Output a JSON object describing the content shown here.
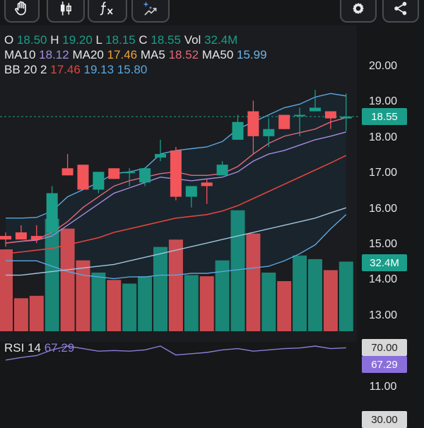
{
  "toolbar": {
    "left_tools": [
      {
        "icon": "hand-gesture-icon"
      },
      {
        "icon": "candlestick-icon"
      },
      {
        "icon": "indicator-function-icon"
      },
      {
        "icon": "drawing-tools-icon"
      }
    ],
    "right_tools": [
      {
        "icon": "gear-icon"
      },
      {
        "icon": "share-icon"
      }
    ]
  },
  "ohlc": {
    "o_label": "O",
    "o": "18.50",
    "h_label": "H",
    "h": "19.20",
    "l_label": "L",
    "l": "18.15",
    "c_label": "C",
    "c": "18.55",
    "vol_label": "Vol",
    "vol": "32.4M"
  },
  "ma_line": {
    "ma10_label": "MA10",
    "ma10": "18.12",
    "ma20_label": "MA20",
    "ma20": "17.46",
    "ma5_label": "MA5",
    "ma5": "18.52",
    "ma50_label": "MA50",
    "ma50": "15.99"
  },
  "bb_line": {
    "label": "BB 20 2",
    "mid": "17.46",
    "upper": "19.13",
    "lower": "15.80"
  },
  "rsi": {
    "label": "RSI 14",
    "value": "67.29"
  },
  "colors": {
    "up": "#1a9e8a",
    "down": "#f2555a",
    "ma10": "#a58ce0",
    "ma20": "#f0a23a",
    "ma5": "#e8667a",
    "ma50": "#6fb4e8",
    "bb_mid": "#e0453f",
    "bb_upper": "#5aa7e0",
    "bb_lower": "#5aa7e0",
    "rsi": "#8f7cd8",
    "background": "#161719"
  },
  "chart_data": {
    "type": "candlestick",
    "y_ticks": [
      "20.00",
      "19.00",
      "18.00",
      "17.00",
      "16.00",
      "15.00",
      "14.00",
      "13.00",
      "11.00"
    ],
    "price_label": "18.55",
    "volume_label": "32.4M",
    "rsi_ticks": [
      "70.00",
      "30.00"
    ],
    "rsi_value_label": "67.29",
    "candles": [
      {
        "o": 15.2,
        "h": 15.3,
        "l": 14.9,
        "c": 15.1
      },
      {
        "o": 15.3,
        "h": 15.5,
        "l": 15.1,
        "c": 15.1
      },
      {
        "o": 15.2,
        "h": 15.5,
        "l": 15.0,
        "c": 15.1
      },
      {
        "o": 15.3,
        "h": 16.6,
        "l": 15.2,
        "c": 16.4
      },
      {
        "o": 17.1,
        "h": 17.5,
        "l": 16.9,
        "c": 16.9
      },
      {
        "o": 17.2,
        "h": 17.2,
        "l": 16.5,
        "c": 16.5
      },
      {
        "o": 16.5,
        "h": 17.0,
        "l": 16.4,
        "c": 17.0
      },
      {
        "o": 17.1,
        "h": 17.1,
        "l": 16.8,
        "c": 16.8
      },
      {
        "o": 17.0,
        "h": 17.1,
        "l": 16.6,
        "c": 17.0
      },
      {
        "o": 16.7,
        "h": 17.1,
        "l": 16.6,
        "c": 17.1
      },
      {
        "o": 17.4,
        "h": 17.9,
        "l": 17.3,
        "c": 17.5
      },
      {
        "o": 17.6,
        "h": 17.7,
        "l": 16.2,
        "c": 16.3
      },
      {
        "o": 16.3,
        "h": 16.6,
        "l": 16.0,
        "c": 16.6
      },
      {
        "o": 16.7,
        "h": 16.8,
        "l": 16.1,
        "c": 16.6
      },
      {
        "o": 16.9,
        "h": 17.3,
        "l": 16.9,
        "c": 17.2
      },
      {
        "o": 17.9,
        "h": 18.6,
        "l": 17.9,
        "c": 18.4
      },
      {
        "o": 18.7,
        "h": 19.0,
        "l": 17.5,
        "c": 18.0
      },
      {
        "o": 18.0,
        "h": 18.5,
        "l": 17.7,
        "c": 18.2
      },
      {
        "o": 18.6,
        "h": 18.6,
        "l": 18.2,
        "c": 18.2
      },
      {
        "o": 18.6,
        "h": 18.8,
        "l": 18.0,
        "c": 18.6
      },
      {
        "o": 18.7,
        "h": 19.3,
        "l": 18.7,
        "c": 18.8
      },
      {
        "o": 18.7,
        "h": 18.7,
        "l": 18.2,
        "c": 18.5
      },
      {
        "o": 18.5,
        "h": 19.2,
        "l": 18.15,
        "c": 18.55
      }
    ],
    "volume_relative": [
      0.67,
      0.27,
      0.29,
      0.92,
      0.84,
      0.58,
      0.48,
      0.42,
      0.39,
      0.45,
      0.69,
      0.75,
      0.46,
      0.45,
      0.58,
      0.99,
      0.8,
      0.48,
      0.41,
      0.62,
      0.59,
      0.5,
      0.57
    ],
    "ma10": [
      15.0,
      15.05,
      15.08,
      15.2,
      15.5,
      15.8,
      16.1,
      16.4,
      16.55,
      16.7,
      16.85,
      16.8,
      16.75,
      16.8,
      16.85,
      17.0,
      17.3,
      17.5,
      17.6,
      17.75,
      17.9,
      18.0,
      18.12
    ],
    "ma20": [
      14.7,
      14.75,
      14.8,
      14.85,
      14.95,
      15.05,
      15.15,
      15.3,
      15.4,
      15.5,
      15.6,
      15.7,
      15.75,
      15.8,
      15.9,
      16.05,
      16.25,
      16.45,
      16.65,
      16.85,
      17.05,
      17.25,
      17.46
    ],
    "ma5": [
      15.0,
      15.05,
      15.1,
      15.3,
      15.6,
      16.0,
      16.3,
      16.6,
      16.75,
      16.85,
      16.95,
      17.0,
      16.9,
      16.9,
      16.95,
      17.15,
      17.5,
      17.8,
      18.0,
      18.1,
      18.2,
      18.4,
      18.52
    ],
    "ma50": [
      14.1,
      14.1,
      14.15,
      14.2,
      14.25,
      14.3,
      14.35,
      14.4,
      14.5,
      14.6,
      14.7,
      14.8,
      14.9,
      15.0,
      15.1,
      15.2,
      15.3,
      15.4,
      15.5,
      15.6,
      15.7,
      15.85,
      15.99
    ],
    "bb_upper": [
      15.7,
      15.7,
      15.72,
      15.9,
      16.3,
      16.5,
      16.7,
      16.95,
      17.0,
      17.1,
      17.5,
      17.6,
      17.65,
      17.7,
      17.85,
      18.2,
      18.4,
      18.6,
      18.8,
      18.9,
      19.1,
      19.2,
      19.13
    ],
    "bb_lower": [
      14.5,
      14.5,
      14.5,
      14.35,
      14.2,
      14.1,
      14.05,
      14.0,
      14.05,
      14.05,
      14.1,
      14.1,
      14.15,
      14.15,
      14.2,
      14.25,
      14.3,
      14.35,
      14.5,
      14.7,
      14.95,
      15.4,
      15.8
    ],
    "rsi_series": [
      48,
      52,
      55,
      64,
      70,
      66,
      62,
      63,
      62,
      64,
      70,
      56,
      58,
      60,
      64,
      66,
      62,
      64,
      66,
      67,
      70,
      66,
      67.29
    ],
    "price_axis_range": [
      12.2,
      20.5
    ],
    "grid": false
  }
}
